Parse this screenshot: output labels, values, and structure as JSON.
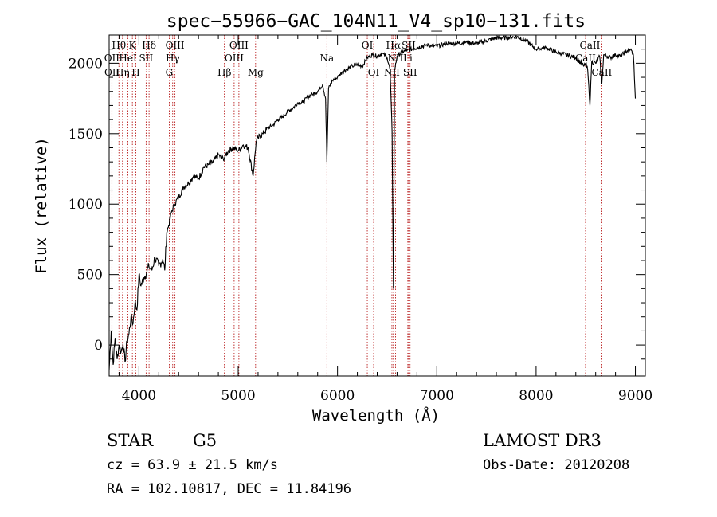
{
  "chart_data": {
    "type": "line",
    "title": "spec−55966−GAC_104N11_V4_sp10−131.fits",
    "xlabel": "Wavelength (Å)",
    "ylabel": "Flux (relative)",
    "xlim": [
      3700,
      9100
    ],
    "ylim": [
      -220,
      2200
    ],
    "xticks": [
      4000,
      5000,
      6000,
      7000,
      8000,
      9000
    ],
    "xtick_labels": [
      "4000",
      "5000",
      "6000",
      "7000",
      "8000",
      "9000"
    ],
    "yticks": [
      0,
      500,
      1000,
      1500,
      2000
    ],
    "ytick_labels": [
      "0",
      "500",
      "1000",
      "1500",
      "2000"
    ],
    "series": [
      {
        "name": "spectrum",
        "x": [
          3700,
          3720,
          3740,
          3760,
          3780,
          3800,
          3820,
          3840,
          3860,
          3880,
          3900,
          3920,
          3940,
          3960,
          3980,
          4000,
          4020,
          4050,
          4080,
          4100,
          4130,
          4160,
          4200,
          4240,
          4260,
          4280,
          4300,
          4330,
          4360,
          4400,
          4450,
          4500,
          4550,
          4600,
          4650,
          4700,
          4750,
          4800,
          4850,
          4900,
          4950,
          5000,
          5050,
          5100,
          5150,
          5180,
          5200,
          5250,
          5300,
          5350,
          5400,
          5450,
          5500,
          5550,
          5600,
          5650,
          5700,
          5750,
          5800,
          5850,
          5880,
          5893,
          5910,
          5950,
          6000,
          6050,
          6100,
          6150,
          6200,
          6250,
          6300,
          6350,
          6400,
          6450,
          6500,
          6530,
          6550,
          6563,
          6575,
          6600,
          6650,
          6700,
          6800,
          6900,
          7000,
          7100,
          7200,
          7300,
          7400,
          7500,
          7600,
          7700,
          7800,
          7900,
          8000,
          8100,
          8200,
          8300,
          8400,
          8480,
          8500,
          8520,
          8542,
          8560,
          8600,
          8640,
          8662,
          8680,
          8750,
          8800,
          8850,
          8900,
          8950,
          8980,
          9000
        ],
        "y": [
          -180,
          100,
          -140,
          50,
          -100,
          0,
          -50,
          10,
          -120,
          30,
          80,
          200,
          150,
          300,
          250,
          500,
          420,
          480,
          520,
          560,
          530,
          620,
          560,
          610,
          530,
          800,
          850,
          950,
          1000,
          1050,
          1120,
          1150,
          1200,
          1180,
          1260,
          1280,
          1300,
          1350,
          1320,
          1380,
          1400,
          1380,
          1420,
          1400,
          1200,
          1440,
          1470,
          1500,
          1540,
          1560,
          1600,
          1620,
          1660,
          1680,
          1720,
          1720,
          1760,
          1780,
          1800,
          1850,
          1750,
          1300,
          1820,
          1880,
          1900,
          1940,
          1960,
          1980,
          1990,
          1980,
          2040,
          2060,
          2050,
          2070,
          2040,
          1950,
          1500,
          400,
          1950,
          2050,
          2080,
          2090,
          2110,
          2130,
          2120,
          2140,
          2140,
          2150,
          2140,
          2160,
          2180,
          2180,
          2190,
          2160,
          2100,
          2110,
          2080,
          2060,
          2040,
          1980,
          2000,
          1950,
          1700,
          2010,
          2000,
          2050,
          1850,
          2060,
          2040,
          2060,
          2050,
          2080,
          2100,
          2060,
          1750
        ]
      }
    ],
    "lines": [
      {
        "label": "Hθ",
        "wavelength": 3798,
        "row": 1
      },
      {
        "label": "OII",
        "wavelength": 3727,
        "row": 2
      },
      {
        "label": "OII",
        "wavelength": 3729,
        "row": 3
      },
      {
        "label": "Hη",
        "wavelength": 3835,
        "row": 3
      },
      {
        "label": "HeI",
        "wavelength": 3889,
        "row": 2
      },
      {
        "label": "K",
        "wavelength": 3934,
        "row": 1
      },
      {
        "label": "H",
        "wavelength": 3969,
        "row": 3
      },
      {
        "label": "Hδ",
        "wavelength": 4102,
        "row": 1
      },
      {
        "label": "SII",
        "wavelength": 4072,
        "row": 2
      },
      {
        "label": "OIII",
        "wavelength": 4363,
        "row": 1
      },
      {
        "label": "Hγ",
        "wavelength": 4340,
        "row": 2
      },
      {
        "label": "G",
        "wavelength": 4305,
        "row": 3
      },
      {
        "label": "Hβ",
        "wavelength": 4861,
        "row": 3
      },
      {
        "label": "OIII",
        "wavelength": 5007,
        "row": 1
      },
      {
        "label": "OIII",
        "wavelength": 4959,
        "row": 2
      },
      {
        "label": "Mg",
        "wavelength": 5175,
        "row": 3
      },
      {
        "label": "Na",
        "wavelength": 5893,
        "row": 2
      },
      {
        "label": "OI",
        "wavelength": 6300,
        "row": 1
      },
      {
        "label": "OI",
        "wavelength": 6364,
        "row": 3
      },
      {
        "label": "Hα",
        "wavelength": 6563,
        "row": 1
      },
      {
        "label": "NII",
        "wavelength": 6548,
        "row": 3
      },
      {
        "label": "NII",
        "wavelength": 6584,
        "row": 2
      },
      {
        "label": "Li",
        "wavelength": 6708,
        "row": 2
      },
      {
        "label": "SII",
        "wavelength": 6717,
        "row": 1
      },
      {
        "label": "SII",
        "wavelength": 6731,
        "row": 3
      },
      {
        "label": "CaII",
        "wavelength": 8498,
        "row": 2
      },
      {
        "label": "CaII",
        "wavelength": 8542,
        "row": 1
      },
      {
        "label": "CaII",
        "wavelength": 8662,
        "row": 3
      }
    ]
  },
  "info": {
    "object_class": "STAR",
    "subclass": "G5",
    "survey": "LAMOST DR3",
    "redshift": "cz = 63.9 ± 21.5 km/s",
    "obs_date": "Obs-Date: 20120208",
    "coords": "RA = 102.10817, DEC =  11.84196"
  },
  "colors": {
    "line_marker": "#b00000",
    "spectrum": "#000000",
    "axes": "#000000"
  }
}
